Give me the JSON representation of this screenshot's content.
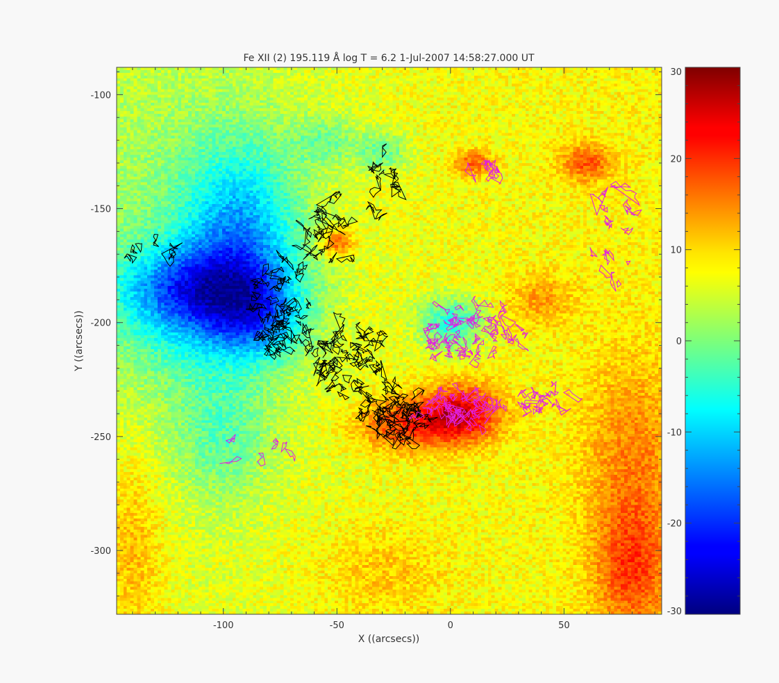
{
  "chart_data": {
    "type": "heatmap",
    "title": "Fe XII (2)    195.119  Å log T = 6.2  1-Jul-2007 14:58:27.000 UT",
    "xlabel": "X ((arcsecs))",
    "ylabel": "Y ((arcsecs))",
    "xlim": [
      -147,
      93
    ],
    "ylim": [
      -328,
      -88
    ],
    "x_ticks": [
      -100,
      -50,
      0,
      50
    ],
    "x_tick_labels": [
      "-100",
      "-50",
      "0",
      "50"
    ],
    "y_ticks": [
      -100,
      -150,
      -200,
      -250,
      -300
    ],
    "y_tick_labels": [
      "-100",
      "-150",
      "-200",
      "-250",
      "-300"
    ],
    "colorbar": {
      "range": [
        -30,
        30
      ],
      "ticks": [
        30,
        20,
        10,
        0,
        -10,
        -20,
        -30
      ],
      "tick_labels": [
        "30",
        "20",
        "10",
        "0",
        "-10",
        "-20",
        "-30"
      ],
      "colormap": "jet"
    },
    "contour_colors": {
      "negative": "#000000",
      "positive": "#e020e0"
    },
    "grid": false
  }
}
